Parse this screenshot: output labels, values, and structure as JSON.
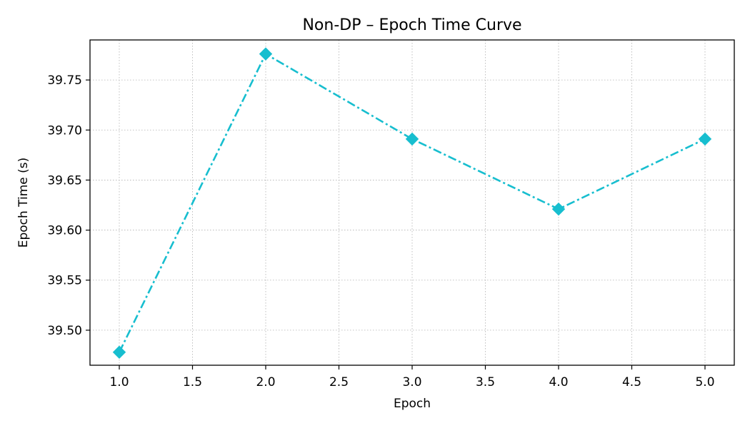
{
  "chart_data": {
    "type": "line",
    "title": "Non-DP – Epoch Time Curve",
    "xlabel": "Epoch",
    "ylabel": "Epoch Time (s)",
    "xlim": [
      0.8,
      5.2
    ],
    "ylim": [
      39.465,
      39.79
    ],
    "xticks": [
      1.0,
      1.5,
      2.0,
      2.5,
      3.0,
      3.5,
      4.0,
      4.5,
      5.0
    ],
    "xtick_labels": [
      "1.0",
      "1.5",
      "2.0",
      "2.5",
      "3.0",
      "3.5",
      "4.0",
      "4.5",
      "5.0"
    ],
    "yticks": [
      39.5,
      39.55,
      39.6,
      39.65,
      39.7,
      39.75
    ],
    "ytick_labels": [
      "39.50",
      "39.55",
      "39.60",
      "39.65",
      "39.70",
      "39.75"
    ],
    "grid": true,
    "series": [
      {
        "x": [
          1,
          2,
          3,
          4,
          5
        ],
        "y": [
          39.478,
          39.776,
          39.691,
          39.621,
          39.691
        ],
        "color": "#17becf",
        "line_style": "dash-dot",
        "marker": "diamond"
      }
    ]
  }
}
